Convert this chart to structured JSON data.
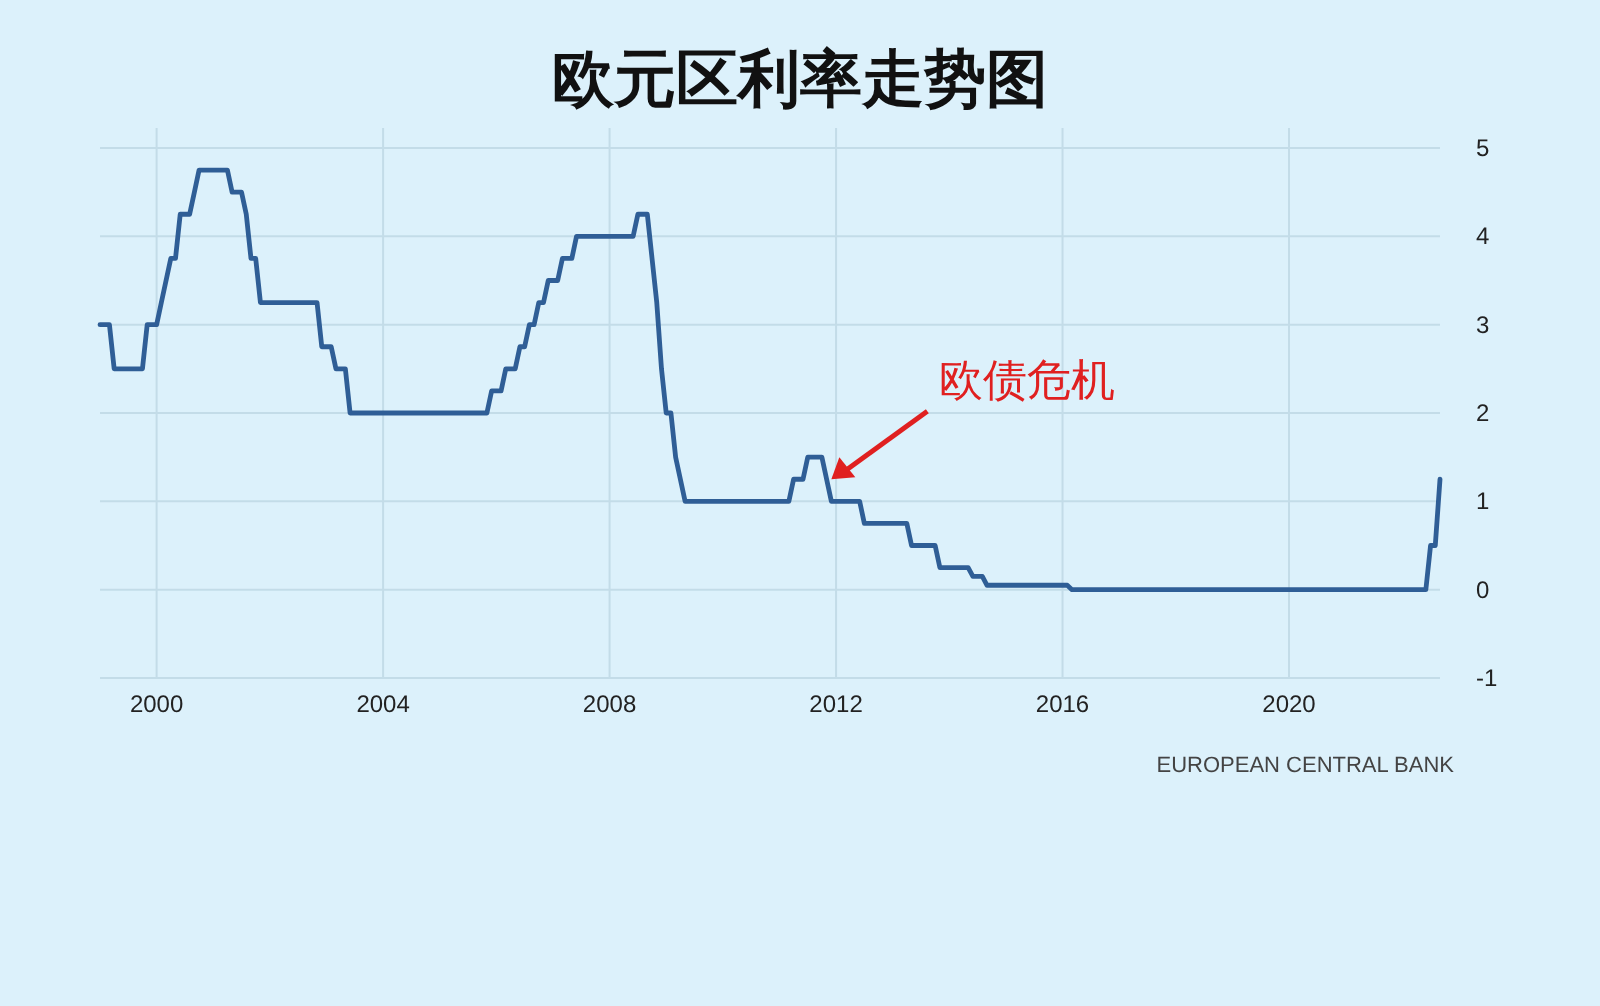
{
  "chart_data": {
    "type": "line",
    "title": "欧元区利率走势图",
    "x": [
      "1999-01",
      "1999-03",
      "1999-04",
      "1999-10",
      "1999-11",
      "2000-01",
      "2000-02",
      "2000-03",
      "2000-04",
      "2000-05",
      "2000-06",
      "2000-08",
      "2000-09",
      "2000-10",
      "2001-04",
      "2001-05",
      "2001-07",
      "2001-08",
      "2001-09",
      "2001-10",
      "2001-11",
      "2002-11",
      "2002-12",
      "2003-02",
      "2003-03",
      "2003-05",
      "2003-06",
      "2005-11",
      "2005-12",
      "2006-02",
      "2006-03",
      "2006-05",
      "2006-06",
      "2006-07",
      "2006-08",
      "2006-09",
      "2006-10",
      "2006-11",
      "2006-12",
      "2007-02",
      "2007-03",
      "2007-05",
      "2007-06",
      "2008-06",
      "2008-07",
      "2008-09",
      "2008-10",
      "2008-11",
      "2008-12",
      "2009-01",
      "2009-02",
      "2009-03",
      "2009-04",
      "2009-05",
      "2011-03",
      "2011-04",
      "2011-06",
      "2011-07",
      "2011-10",
      "2011-11",
      "2011-12",
      "2012-06",
      "2012-07",
      "2013-04",
      "2013-05",
      "2013-10",
      "2013-11",
      "2014-05",
      "2014-06",
      "2014-08",
      "2014-09",
      "2016-02",
      "2016-03",
      "2022-06",
      "2022-07",
      "2022-08",
      "2022-09"
    ],
    "values": [
      3.0,
      3.0,
      2.5,
      2.5,
      3.0,
      3.0,
      3.25,
      3.5,
      3.75,
      3.75,
      4.25,
      4.25,
      4.5,
      4.75,
      4.75,
      4.5,
      4.5,
      4.25,
      3.75,
      3.75,
      3.25,
      3.25,
      2.75,
      2.75,
      2.5,
      2.5,
      2.0,
      2.0,
      2.25,
      2.25,
      2.5,
      2.5,
      2.75,
      2.75,
      3.0,
      3.0,
      3.25,
      3.25,
      3.5,
      3.5,
      3.75,
      3.75,
      4.0,
      4.0,
      4.25,
      4.25,
      3.75,
      3.25,
      2.5,
      2.0,
      2.0,
      1.5,
      1.25,
      1.0,
      1.0,
      1.25,
      1.25,
      1.5,
      1.5,
      1.25,
      1.0,
      1.0,
      0.75,
      0.75,
      0.5,
      0.5,
      0.25,
      0.25,
      0.15,
      0.15,
      0.05,
      0.05,
      0.0,
      0.0,
      0.5,
      0.5,
      1.25
    ],
    "color": "#2f5e96",
    "xlim": [
      "1999-01",
      "2022-09"
    ],
    "ylim": [
      -1,
      5
    ],
    "xticks": [
      {
        "value": "2000-01",
        "label": "2000"
      },
      {
        "value": "2004-01",
        "label": "2004"
      },
      {
        "value": "2008-01",
        "label": "2008"
      },
      {
        "value": "2012-01",
        "label": "2012"
      },
      {
        "value": "2016-01",
        "label": "2016"
      },
      {
        "value": "2020-01",
        "label": "2020"
      }
    ],
    "yticks": [
      -1,
      0,
      1,
      2,
      3,
      4,
      5
    ],
    "grid": true,
    "annotations": [
      {
        "text": "欧债危机",
        "x": "2011-12",
        "y": 1.25
      },
      "EUROPEAN CENTRAL BANK"
    ]
  }
}
